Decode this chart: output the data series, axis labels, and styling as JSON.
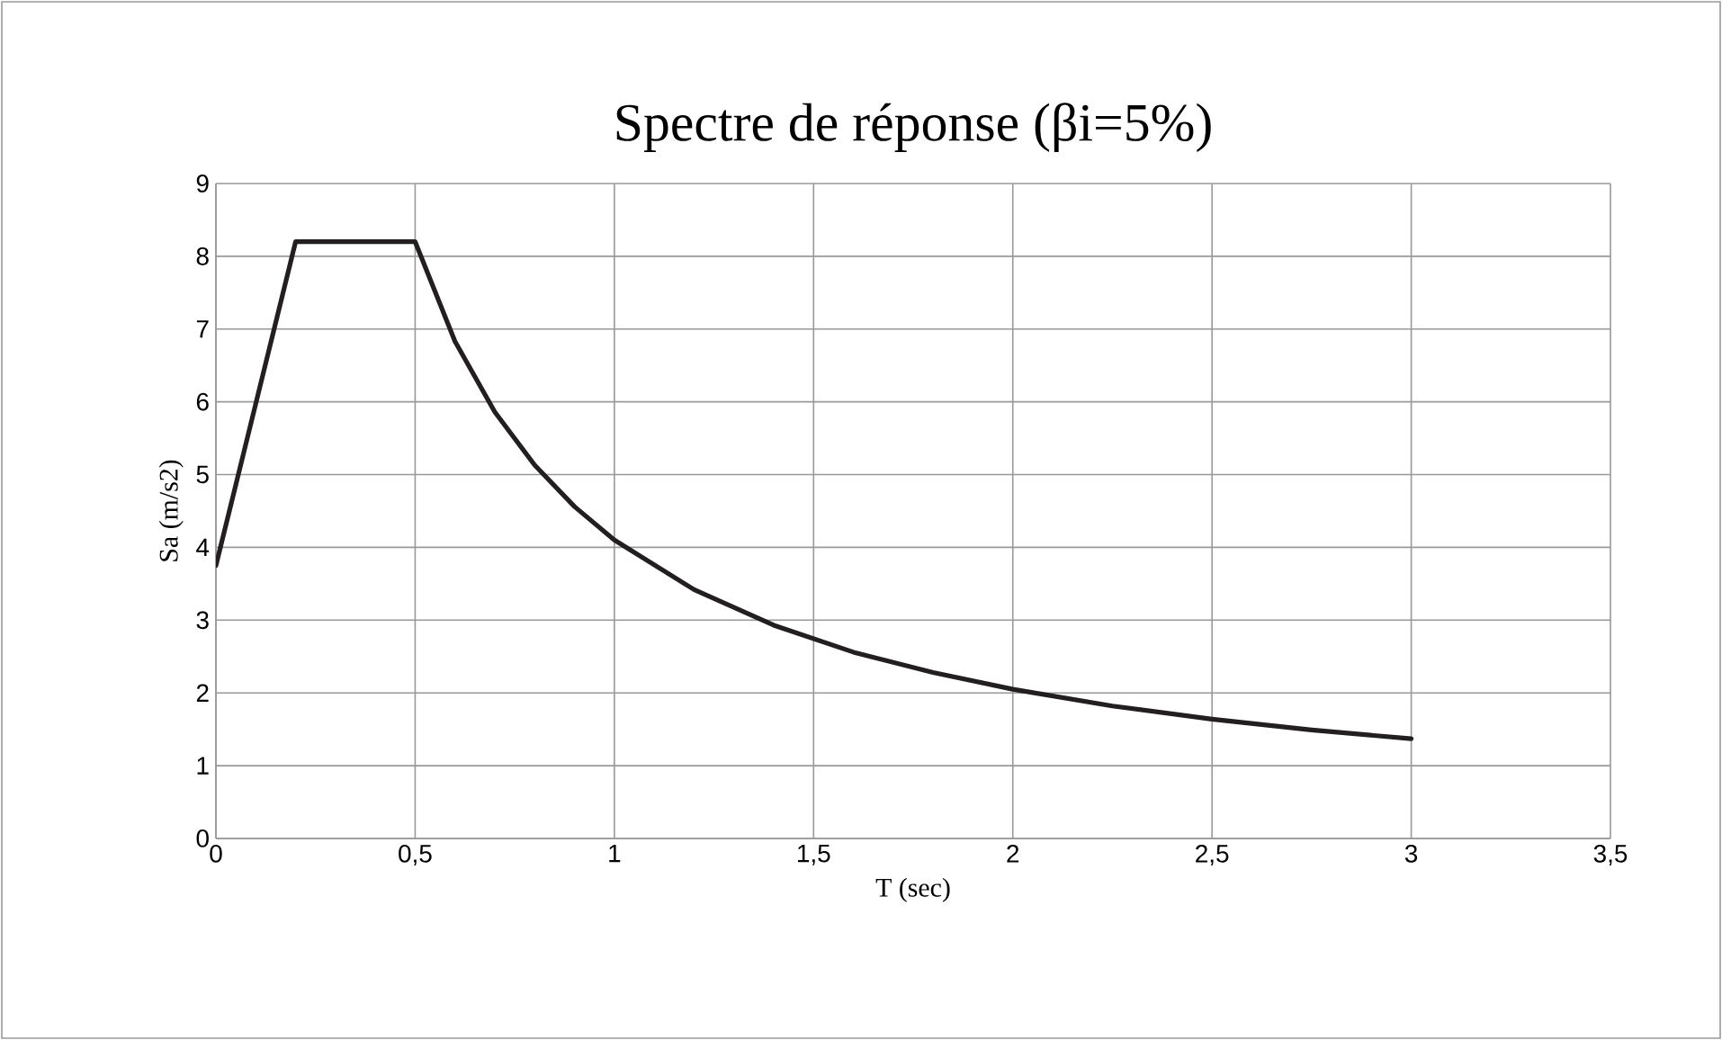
{
  "chart_data": {
    "type": "line",
    "title": "Spectre de réponse (βi=5%)",
    "xlabel": "T (sec)",
    "ylabel": "Sa (m/s2)",
    "x": [
      0,
      0.2,
      0.5,
      0.6,
      0.7,
      0.8,
      0.9,
      1.0,
      1.2,
      1.4,
      1.6,
      1.8,
      2.0,
      2.25,
      2.5,
      2.75,
      3.0
    ],
    "series": [
      {
        "color": "#231f20",
        "values": [
          3.75,
          8.2,
          8.2,
          6.83,
          5.86,
          5.13,
          4.56,
          4.1,
          3.42,
          2.93,
          2.56,
          2.28,
          2.05,
          1.82,
          1.64,
          1.49,
          1.37
        ]
      }
    ],
    "xlim": [
      0,
      3.5
    ],
    "xticks": [
      0,
      {
        "value": 0.5,
        "label": "0,5"
      },
      1,
      {
        "value": 1.5,
        "label": "1,5"
      },
      2,
      {
        "value": 2.5,
        "label": "2,5"
      },
      3,
      {
        "value": 3.5,
        "label": "3,5"
      }
    ],
    "ylim": [
      0,
      9
    ],
    "yticks": [
      0,
      1,
      2,
      3,
      4,
      5,
      6,
      7,
      8,
      9
    ],
    "grid": true,
    "marker": "none",
    "line_style": "solid",
    "legend": false
  }
}
